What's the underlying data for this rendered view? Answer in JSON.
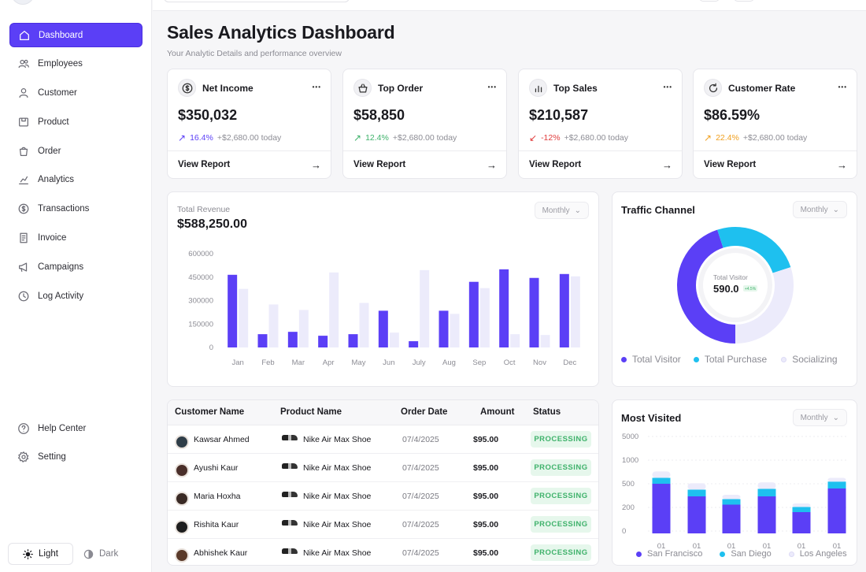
{
  "sidebar": {
    "items": [
      {
        "label": "Dashboard",
        "icon": "home-icon",
        "active": true
      },
      {
        "label": "Employees",
        "icon": "users-icon"
      },
      {
        "label": "Customer",
        "icon": "user-icon"
      },
      {
        "label": "Product",
        "icon": "box-icon"
      },
      {
        "label": "Order",
        "icon": "bag-icon"
      },
      {
        "label": "Analytics",
        "icon": "chart-icon"
      },
      {
        "label": "Transactions",
        "icon": "dollar-icon"
      },
      {
        "label": "Invoice",
        "icon": "invoice-icon"
      },
      {
        "label": "Campaigns",
        "icon": "megaphone-icon"
      },
      {
        "label": "Log Activity",
        "icon": "activity-icon"
      }
    ],
    "bottom": [
      {
        "label": "Help Center",
        "icon": "help-icon"
      },
      {
        "label": "Setting",
        "icon": "gear-icon"
      }
    ],
    "theme": {
      "light": "Light",
      "dark": "Dark"
    }
  },
  "header": {
    "title": "Sales Analytics Dashboard",
    "subtitle": "Your Analytic Details and performance overview"
  },
  "kpis": [
    {
      "title": "Net Income",
      "icon": "dollar-icon",
      "value": "$350,032",
      "change": "16.4%",
      "change_dir": "up",
      "change_color": "#5b3ff6",
      "today": "+$2,680.00 today",
      "link": "View Report"
    },
    {
      "title": "Top Order",
      "icon": "basket-icon",
      "value": "$58,850",
      "change": "12.4%",
      "change_dir": "up",
      "change_color": "#3fb26b",
      "today": "+$2,680.00 today",
      "link": "View Report"
    },
    {
      "title": "Top Sales",
      "icon": "bar-chart-icon",
      "value": "$210,587",
      "change": "-12%",
      "change_dir": "down",
      "change_color": "#e03b3b",
      "today": "+$2,680.00 today",
      "link": "View Report"
    },
    {
      "title": "Customer Rate",
      "icon": "refresh-icon",
      "value": "$86.59%",
      "change": "22.4%",
      "change_dir": "up",
      "change_color": "#f0a020",
      "today": "+$2,680.00 today",
      "link": "View Report"
    }
  ],
  "revenue": {
    "label": "Total Revenue",
    "value": "$588,250.00",
    "period": "Monthly"
  },
  "traffic": {
    "title": "Traffic Channel",
    "period": "Monthly",
    "center_label": "Total Visitor",
    "center_value": "590.0",
    "center_badge": "+4.5%",
    "legend": [
      {
        "name": "Total Visitor",
        "color": "#5b3ff6"
      },
      {
        "name": "Total Purchase",
        "color": "#1ec0ef"
      },
      {
        "name": "Socializing",
        "color": "#ecebfb"
      }
    ]
  },
  "visited": {
    "title": "Most Visited",
    "period": "Monthly"
  },
  "table": {
    "headers": [
      "Customer Name",
      "Product Name",
      "Order Date",
      "Amount",
      "Status"
    ],
    "rows": [
      {
        "name": "Kawsar Ahmed",
        "product": "Nike Air Max Shoe",
        "date": "07/4/2025",
        "amount": "$95.00",
        "status": "PROCESSING"
      },
      {
        "name": "Ayushi Kaur",
        "product": "Nike Air Max Shoe",
        "date": "07/4/2025",
        "amount": "$95.00",
        "status": "PROCESSING"
      },
      {
        "name": "Maria Hoxha",
        "product": "Nike Air Max Shoe",
        "date": "07/4/2025",
        "amount": "$95.00",
        "status": "PROCESSING"
      },
      {
        "name": "Rishita Kaur",
        "product": "Nike Air Max Shoe",
        "date": "07/4/2025",
        "amount": "$95.00",
        "status": "PROCESSING"
      },
      {
        "name": "Abhishek Kaur",
        "product": "Nike Air Max Shoe",
        "date": "07/4/2025",
        "amount": "$95.00",
        "status": "PROCESSING"
      }
    ]
  },
  "chart_data": [
    {
      "type": "bar",
      "title": "",
      "categories": [
        "Jan",
        "Feb",
        "Mar",
        "Apr",
        "May",
        "Jun",
        "July",
        "Aug",
        "Sep",
        "Oct",
        "Nov",
        "Dec"
      ],
      "series": [
        {
          "values": [
            465000,
            85000,
            100000,
            75000,
            85000,
            235000,
            40000,
            235000,
            420000,
            500000,
            445000,
            470000
          ],
          "color": "#5b3ff6"
        },
        {
          "values": [
            375000,
            275000,
            240000,
            480000,
            285000,
            95000,
            495000,
            215000,
            380000,
            85000,
            80000,
            455000
          ],
          "color": "#ecebfb"
        }
      ],
      "yticks": [
        "600000",
        "450000",
        "300000",
        "150000",
        "0"
      ],
      "ylim": [
        0,
        600000
      ]
    },
    {
      "type": "pie",
      "slices": [
        {
          "name": "Total Visitor",
          "value": 45
        },
        {
          "name": "Total Purchase",
          "value": 25
        },
        {
          "name": "Socializing",
          "value": 30
        }
      ]
    },
    {
      "type": "bar",
      "stacked": true,
      "categories": [
        "01",
        "01",
        "01",
        "01",
        "01",
        "01"
      ],
      "series": [
        {
          "name": "San Francisco",
          "color": "#5b3ff6",
          "values": [
            500,
            340,
            235,
            340,
            160,
            440
          ]
        },
        {
          "name": "San Diego",
          "color": "#1ec0ef",
          "values": [
            125,
            85,
            70,
            95,
            45,
            105
          ]
        },
        {
          "name": "Los Angeles",
          "color": "#ecebfb",
          "values": [
            135,
            85,
            55,
            95,
            45,
            80
          ]
        }
      ],
      "yticks": [
        "5000",
        "1000",
        "500",
        "200",
        "0"
      ]
    }
  ]
}
